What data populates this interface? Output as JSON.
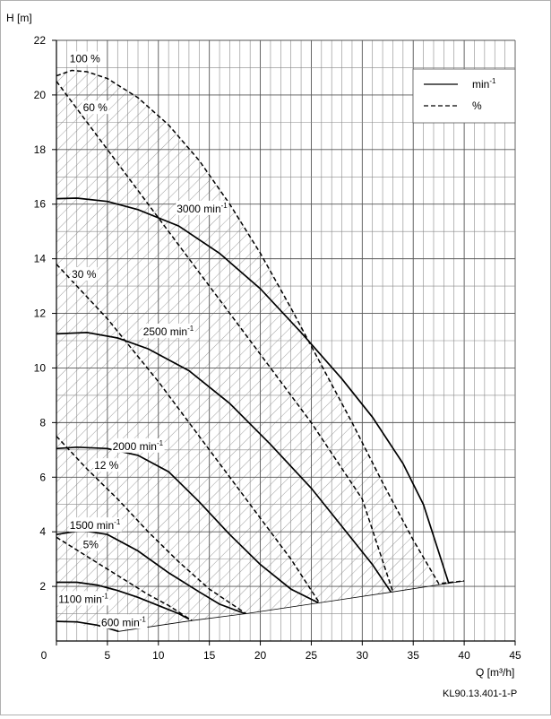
{
  "chart_data": {
    "type": "line",
    "xlabel": "Q [m³/h]",
    "ylabel": "H [m]",
    "xlim": [
      0,
      45
    ],
    "ylim": [
      0,
      22
    ],
    "x_ticks": [
      "0",
      "5",
      "10",
      "15",
      "20",
      "25",
      "30",
      "35",
      "40",
      "45"
    ],
    "y_ticks": [
      "2",
      "4",
      "6",
      "8",
      "10",
      "12",
      "14",
      "16",
      "18",
      "20",
      "22"
    ],
    "grid": true,
    "legend": {
      "position": "top-right",
      "entries": [
        {
          "label": "min",
          "sup": "-1",
          "style": "solid"
        },
        {
          "label": "%",
          "sup": "",
          "style": "dashed"
        }
      ]
    },
    "speed_curves": [
      {
        "label": "3000 min",
        "sup": "-1",
        "label_at": [
          11.8,
          15.7
        ],
        "points": [
          [
            0,
            16.2
          ],
          [
            2,
            16.22
          ],
          [
            5,
            16.1
          ],
          [
            8,
            15.8
          ],
          [
            12,
            15.2
          ],
          [
            16,
            14.2
          ],
          [
            20,
            12.9
          ],
          [
            24,
            11.3
          ],
          [
            28,
            9.6
          ],
          [
            31,
            8.2
          ],
          [
            34,
            6.5
          ],
          [
            36,
            5.0
          ],
          [
            38.5,
            2.1
          ]
        ]
      },
      {
        "label": "2500 min",
        "sup": "-1",
        "label_at": [
          8.5,
          11.2
        ],
        "points": [
          [
            0,
            11.25
          ],
          [
            3,
            11.3
          ],
          [
            6,
            11.1
          ],
          [
            9,
            10.7
          ],
          [
            13,
            9.9
          ],
          [
            17,
            8.7
          ],
          [
            21,
            7.2
          ],
          [
            25,
            5.6
          ],
          [
            28,
            4.2
          ],
          [
            31,
            2.8
          ],
          [
            32.8,
            1.8
          ]
        ]
      },
      {
        "label": "2000 min",
        "sup": "-1",
        "label_at": [
          5.5,
          7.0
        ],
        "points": [
          [
            0,
            7.05
          ],
          [
            2,
            7.1
          ],
          [
            5,
            7.05
          ],
          [
            8,
            6.8
          ],
          [
            11,
            6.2
          ],
          [
            14,
            5.1
          ],
          [
            17,
            3.9
          ],
          [
            20,
            2.8
          ],
          [
            23,
            1.9
          ],
          [
            25.7,
            1.4
          ]
        ]
      },
      {
        "label": "1500 min",
        "sup": "-1",
        "label_at": [
          1.3,
          4.1
        ],
        "points": [
          [
            0,
            3.9
          ],
          [
            2.5,
            4.05
          ],
          [
            5,
            3.9
          ],
          [
            8,
            3.3
          ],
          [
            11,
            2.5
          ],
          [
            14,
            1.8
          ],
          [
            16,
            1.35
          ],
          [
            18.5,
            1.0
          ]
        ]
      },
      {
        "label": "1100 min",
        "sup": "-1",
        "label_at": [
          0.2,
          1.4
        ],
        "points": [
          [
            0,
            2.15
          ],
          [
            2,
            2.15
          ],
          [
            4,
            2.05
          ],
          [
            6,
            1.85
          ],
          [
            8,
            1.6
          ],
          [
            10,
            1.3
          ],
          [
            12,
            1.0
          ],
          [
            13,
            0.8
          ]
        ]
      },
      {
        "label": "600 min",
        "sup": "-1",
        "label_at": [
          4.4,
          0.55
        ],
        "points": [
          [
            0,
            0.72
          ],
          [
            2,
            0.7
          ],
          [
            4,
            0.58
          ],
          [
            6.1,
            0.35
          ]
        ]
      }
    ],
    "percent_curves": [
      {
        "label": "100 %",
        "label_at": [
          1.3,
          21.2
        ],
        "points": [
          [
            0,
            20.7
          ],
          [
            1.5,
            20.9
          ],
          [
            3,
            20.85
          ],
          [
            5,
            20.6
          ],
          [
            8,
            19.9
          ],
          [
            11,
            18.9
          ],
          [
            14,
            17.6
          ],
          [
            17,
            16.0
          ],
          [
            20,
            14.2
          ],
          [
            23,
            12.2
          ],
          [
            26,
            10.1
          ],
          [
            29,
            8.0
          ],
          [
            32,
            5.8
          ],
          [
            35,
            3.7
          ],
          [
            37.5,
            2.1
          ],
          [
            40,
            2.2
          ]
        ]
      },
      {
        "label": "60 %",
        "label_at": [
          2.6,
          19.4
        ],
        "points": [
          [
            0,
            20.5
          ],
          [
            5,
            18.0
          ],
          [
            10,
            15.5
          ],
          [
            15,
            13.0
          ],
          [
            20,
            10.5
          ],
          [
            25,
            8.0
          ],
          [
            30,
            5.2
          ],
          [
            33,
            1.8
          ]
        ]
      },
      {
        "label": "30 %",
        "label_at": [
          1.5,
          13.3
        ],
        "points": [
          [
            0,
            13.8
          ],
          [
            5,
            11.8
          ],
          [
            10,
            9.5
          ],
          [
            15,
            7.0
          ],
          [
            20,
            4.5
          ],
          [
            23,
            3.0
          ],
          [
            25.8,
            1.4
          ]
        ]
      },
      {
        "label": "12 %",
        "label_at": [
          3.7,
          6.3
        ],
        "points": [
          [
            0,
            7.5
          ],
          [
            3,
            6.3
          ],
          [
            6,
            5.2
          ],
          [
            9,
            4.0
          ],
          [
            12,
            2.9
          ],
          [
            15,
            1.9
          ],
          [
            18.6,
            1.0
          ]
        ]
      },
      {
        "label": "5%",
        "label_at": [
          2.6,
          3.4
        ],
        "points": [
          [
            0,
            3.8
          ],
          [
            3,
            3.1
          ],
          [
            6,
            2.4
          ],
          [
            9,
            1.7
          ],
          [
            11,
            1.3
          ],
          [
            13.3,
            0.75
          ]
        ]
      }
    ],
    "envelope_baseline": [
      [
        6.1,
        0.35
      ],
      [
        13.3,
        0.75
      ],
      [
        18.6,
        1.0
      ],
      [
        25.8,
        1.4
      ],
      [
        33,
        1.8
      ],
      [
        40,
        2.2
      ]
    ],
    "code": "KL90.13.401-1-P"
  }
}
